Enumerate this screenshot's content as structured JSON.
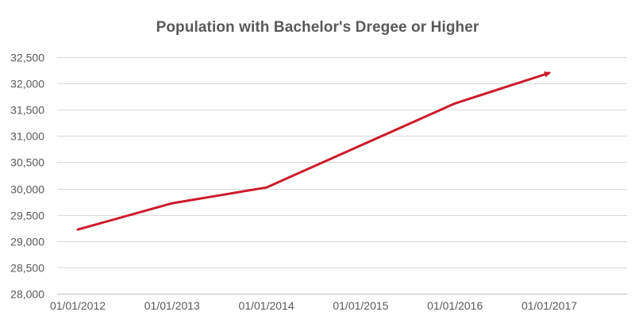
{
  "chart_data": {
    "type": "line",
    "title": "Population with Bachelor's Dregee or Higher",
    "xlabel": "",
    "ylabel": "",
    "categories": [
      "01/01/2012",
      "01/01/2013",
      "01/01/2014",
      "01/01/2015",
      "01/01/2016",
      "01/01/2017"
    ],
    "y_ticks": [
      "28,000",
      "28,500",
      "29,000",
      "29,500",
      "30,000",
      "30,500",
      "31,000",
      "31,500",
      "32,000",
      "32,500"
    ],
    "ylim": [
      28000,
      32500
    ],
    "grid": true,
    "legend": "none",
    "series": [
      {
        "values": [
          29220,
          29720,
          30020,
          30820,
          31620,
          32200
        ],
        "color": "#cc1b2b",
        "end_marker": "arrow"
      }
    ]
  }
}
